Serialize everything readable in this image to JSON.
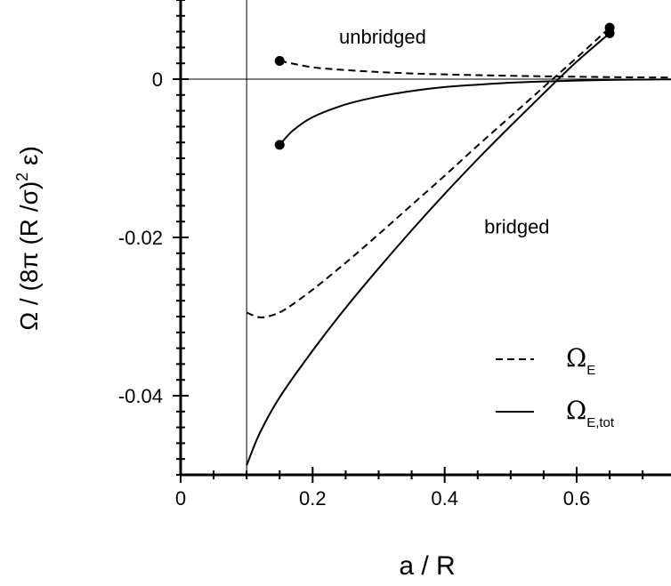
{
  "chart_data": {
    "type": "line",
    "xlabel": "a / R",
    "ylabel": {
      "main": "Ω / (8π (R /σ)",
      "sup": "2",
      "tail": " ε)"
    },
    "xlim": [
      0,
      0.75
    ],
    "ylim": [
      -0.05,
      0.01
    ],
    "xticks": [
      {
        "value": 0,
        "label": "0"
      },
      {
        "value": 0.2,
        "label": "0.2"
      },
      {
        "value": 0.4,
        "label": "0.4"
      },
      {
        "value": 0.6,
        "label": "0.6"
      }
    ],
    "yticks": [
      {
        "value": 0,
        "label": "0"
      },
      {
        "value": -0.02,
        "label": "-0.02"
      },
      {
        "value": -0.04,
        "label": "-0.04"
      }
    ],
    "reference_lines": {
      "x": 0.1,
      "y": 0
    },
    "annotations": [
      {
        "text": "unbridged",
        "x": 0.24,
        "y": 0.0045
      },
      {
        "text": "bridged",
        "x": 0.46,
        "y": -0.0195
      }
    ],
    "series": [
      {
        "name": "Ω_E",
        "style": "dashed",
        "segment": "unbridged",
        "x": [
          0.15,
          0.2,
          0.25,
          0.3,
          0.35,
          0.4,
          0.45,
          0.5,
          0.55,
          0.6,
          0.65,
          0.7,
          0.75
        ],
        "y": [
          0.0023,
          0.0015,
          0.00115,
          0.0009,
          0.00072,
          0.0006,
          0.0005,
          0.00042,
          0.00036,
          0.0003,
          0.00026,
          0.00022,
          0.0002
        ]
      },
      {
        "name": "Ω_E",
        "style": "dashed",
        "segment": "bridged",
        "x": [
          0.1,
          0.12,
          0.14,
          0.16,
          0.2,
          0.25,
          0.3,
          0.35,
          0.4,
          0.45,
          0.5,
          0.55,
          0.6,
          0.65
        ],
        "y": [
          -0.0295,
          -0.0301,
          -0.0298,
          -0.029,
          -0.0266,
          -0.0232,
          -0.0196,
          -0.0159,
          -0.0122,
          -0.0084,
          -0.0047,
          -0.001,
          0.0027,
          0.0065
        ]
      },
      {
        "name": "Ω_E,tot",
        "style": "solid",
        "segment": "unbridged",
        "x": [
          0.15,
          0.17,
          0.2,
          0.25,
          0.3,
          0.35,
          0.4,
          0.45,
          0.5,
          0.55,
          0.6,
          0.65,
          0.7,
          0.75
        ],
        "y": [
          -0.0083,
          -0.0065,
          -0.0048,
          -0.0032,
          -0.0022,
          -0.0015,
          -0.001,
          -0.0007,
          -0.00045,
          -0.0003,
          -0.00018,
          -0.0001,
          -5e-05,
          -2e-05
        ]
      },
      {
        "name": "Ω_E,tot",
        "style": "solid",
        "segment": "bridged",
        "x": [
          0.1,
          0.12,
          0.15,
          0.2,
          0.25,
          0.3,
          0.35,
          0.4,
          0.45,
          0.5,
          0.55,
          0.6,
          0.65
        ],
        "y": [
          -0.0488,
          -0.0447,
          -0.0402,
          -0.0343,
          -0.0289,
          -0.0239,
          -0.0191,
          -0.0145,
          -0.0101,
          -0.0059,
          -0.0018,
          0.0022,
          0.0058
        ]
      }
    ],
    "endpoints": [
      {
        "x": 0.15,
        "y": 0.0023
      },
      {
        "x": 0.15,
        "y": -0.0083
      },
      {
        "x": 0.65,
        "y": 0.0065
      },
      {
        "x": 0.65,
        "y": 0.0058
      }
    ],
    "legend": {
      "placement": "bottom-right",
      "entries": [
        {
          "style": "dashed",
          "label": "Ω",
          "sub": "E"
        },
        {
          "style": "solid",
          "label": "Ω",
          "sub": "E,tot"
        }
      ]
    }
  }
}
